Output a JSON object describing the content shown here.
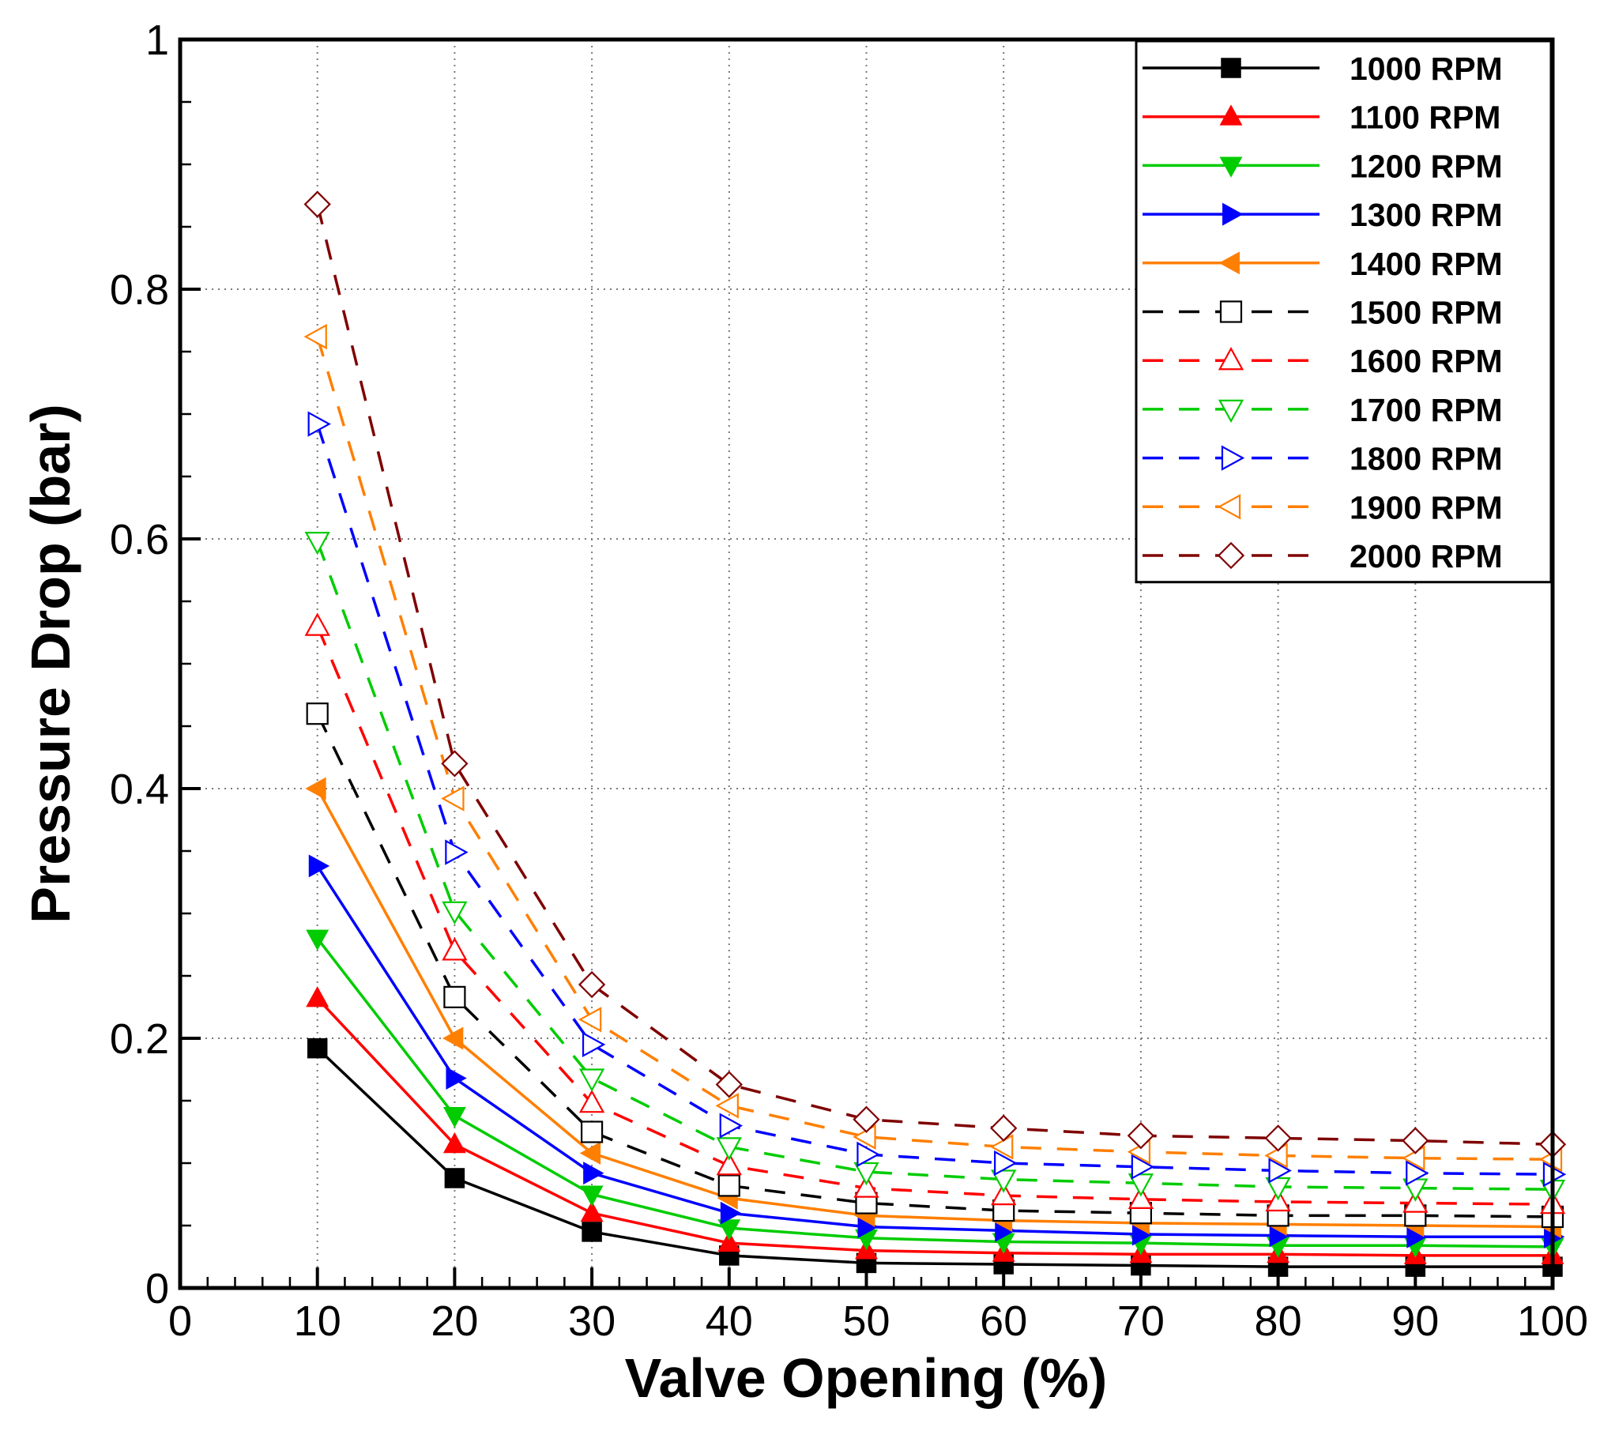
{
  "chart_data": {
    "type": "line",
    "title": "",
    "xlabel": "Valve Opening (%)",
    "ylabel": "Pressure Drop (bar)",
    "xlim": [
      0,
      100
    ],
    "ylim": [
      0,
      1
    ],
    "xticks": [
      0,
      10,
      20,
      30,
      40,
      50,
      60,
      70,
      80,
      90,
      100
    ],
    "yticks": [
      0,
      0.2,
      0.4,
      0.6,
      0.8,
      1
    ],
    "ytick_labels": [
      "0",
      "0.2",
      "0.4",
      "0.6",
      "0.8",
      "1"
    ],
    "grid": "dotted",
    "legend_position": "top-right",
    "x": [
      10,
      20,
      30,
      40,
      50,
      60,
      70,
      80,
      90,
      100
    ],
    "series": [
      {
        "name": "1000 RPM",
        "color": "#000000",
        "dashed": false,
        "marker": "square",
        "filled": true,
        "values": [
          0.192,
          0.088,
          0.045,
          0.026,
          0.02,
          0.019,
          0.018,
          0.017,
          0.017,
          0.017
        ]
      },
      {
        "name": "1100 RPM",
        "color": "#ff0000",
        "dashed": false,
        "marker": "triangle-up",
        "filled": true,
        "values": [
          0.232,
          0.115,
          0.06,
          0.036,
          0.03,
          0.028,
          0.027,
          0.027,
          0.026,
          0.026
        ]
      },
      {
        "name": "1200 RPM",
        "color": "#00cc00",
        "dashed": false,
        "marker": "triangle-down",
        "filled": true,
        "values": [
          0.28,
          0.138,
          0.075,
          0.048,
          0.04,
          0.037,
          0.036,
          0.034,
          0.034,
          0.033
        ]
      },
      {
        "name": "1300 RPM",
        "color": "#0000ff",
        "dashed": false,
        "marker": "triangle-right",
        "filled": true,
        "values": [
          0.338,
          0.168,
          0.092,
          0.06,
          0.049,
          0.046,
          0.043,
          0.042,
          0.041,
          0.041
        ]
      },
      {
        "name": "1400 RPM",
        "color": "#ff7f00",
        "dashed": false,
        "marker": "triangle-left",
        "filled": true,
        "values": [
          0.4,
          0.2,
          0.108,
          0.072,
          0.058,
          0.054,
          0.052,
          0.051,
          0.05,
          0.049
        ]
      },
      {
        "name": "1500 RPM",
        "color": "#000000",
        "dashed": true,
        "marker": "square",
        "filled": false,
        "values": [
          0.46,
          0.233,
          0.125,
          0.082,
          0.068,
          0.062,
          0.06,
          0.058,
          0.058,
          0.057
        ]
      },
      {
        "name": "1600 RPM",
        "color": "#ff0000",
        "dashed": true,
        "marker": "triangle-up",
        "filled": false,
        "values": [
          0.53,
          0.27,
          0.148,
          0.098,
          0.08,
          0.074,
          0.071,
          0.069,
          0.068,
          0.067
        ]
      },
      {
        "name": "1700 RPM",
        "color": "#00cc00",
        "dashed": true,
        "marker": "triangle-down",
        "filled": false,
        "values": [
          0.598,
          0.302,
          0.168,
          0.113,
          0.093,
          0.087,
          0.084,
          0.081,
          0.08,
          0.079
        ]
      },
      {
        "name": "1800 RPM",
        "color": "#0000ff",
        "dashed": true,
        "marker": "triangle-right",
        "filled": false,
        "values": [
          0.692,
          0.349,
          0.195,
          0.13,
          0.107,
          0.1,
          0.097,
          0.094,
          0.092,
          0.091
        ]
      },
      {
        "name": "1900 RPM",
        "color": "#ff7f00",
        "dashed": true,
        "marker": "triangle-left",
        "filled": false,
        "values": [
          0.762,
          0.392,
          0.215,
          0.146,
          0.121,
          0.113,
          0.109,
          0.106,
          0.104,
          0.103
        ]
      },
      {
        "name": "2000 RPM",
        "color": "#7f0000",
        "dashed": true,
        "marker": "diamond",
        "filled": false,
        "values": [
          0.868,
          0.42,
          0.243,
          0.163,
          0.135,
          0.128,
          0.122,
          0.12,
          0.118,
          0.115
        ]
      }
    ]
  }
}
